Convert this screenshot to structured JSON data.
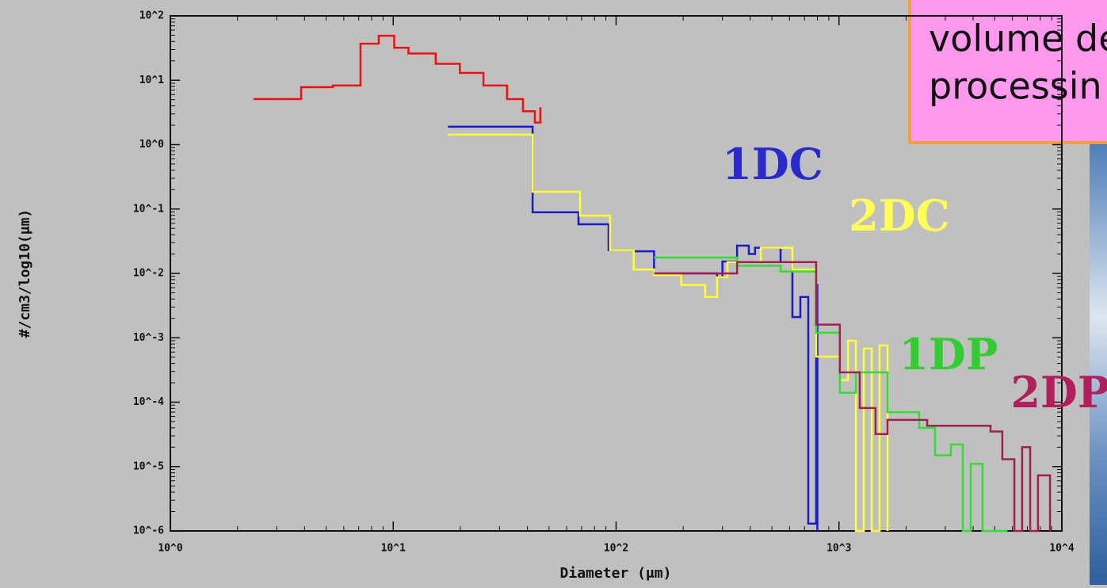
{
  "chart_data": {
    "type": "step",
    "x_label": "Diameter (μm)",
    "y_label": "#/cm3/log10(μm)",
    "log_x": true,
    "log_y": true,
    "xlim": [
      1,
      10000
    ],
    "ylim": [
      1e-06,
      100
    ],
    "xticks": [
      {
        "value": 1,
        "label": "10^0"
      },
      {
        "value": 10,
        "label": "10^1"
      },
      {
        "value": 100,
        "label": "10^2"
      },
      {
        "value": 1000,
        "label": "10^3"
      },
      {
        "value": 10000,
        "label": "10^4"
      }
    ],
    "yticks": [
      {
        "value": 1e-06,
        "label": "10^-6"
      },
      {
        "value": 1e-05,
        "label": "10^-5"
      },
      {
        "value": 0.0001,
        "label": "10^-4"
      },
      {
        "value": 0.001,
        "label": "10^-3"
      },
      {
        "value": 0.01,
        "label": "10^-2"
      },
      {
        "value": 0.1,
        "label": "10^-1"
      },
      {
        "value": 1,
        "label": "10^0"
      },
      {
        "value": 10,
        "label": "10^1"
      },
      {
        "value": 100,
        "label": "10^2"
      }
    ],
    "series": [
      {
        "color": "#ee1111",
        "x": [
          2.36,
          3.86,
          5.35,
          7.13,
          8.61,
          10.1,
          11.7,
          15.5,
          19.9,
          25.4,
          32.4,
          38.2,
          43.2,
          45.7
        ],
        "values": [
          5.1,
          7.8,
          8.3,
          37,
          49,
          32,
          26,
          18,
          13,
          8.3,
          5.1,
          3.3,
          2.2,
          3.8
        ]
      },
      {
        "color": "#1a1acc",
        "x": [
          17.6,
          42.2,
          67.8,
          92.5,
          120,
          148,
          284,
          300,
          349,
          394,
          420,
          547,
          618,
          671,
          728,
          790,
          800
        ],
        "values": [
          1.9,
          0.089,
          0.058,
          0.023,
          0.022,
          0.01,
          0.0087,
          0.0153,
          0.027,
          0.02,
          0.025,
          0.015,
          0.0021,
          0.0043,
          1.3e-06,
          0.0066,
          1e-06
        ]
      },
      {
        "color": "#ffff33",
        "x": [
          17.6,
          42.2,
          68.9,
          94,
          120,
          148,
          196,
          251,
          284,
          316,
          446,
          618,
          790,
          1009,
          1097,
          1191,
          1292,
          1403,
          1521,
          1651
        ],
        "values": [
          1.43,
          0.185,
          0.079,
          0.023,
          0.0115,
          0.0094,
          0.0066,
          0.0043,
          0.0087,
          0.015,
          0.025,
          0.0115,
          0.00051,
          0.00022,
          0.0009,
          1e-06,
          0.00068,
          1e-06,
          0.00076,
          1e-06
        ]
      },
      {
        "color": "#33dd33",
        "x": [
          148,
          349,
          547,
          790,
          1009,
          1191,
          1651,
          2291,
          2698,
          3178,
          3594,
          3900,
          4406,
          5700
        ],
        "values": [
          0.0176,
          0.0132,
          0.0107,
          0.0012,
          0.00014,
          0.00029,
          7e-05,
          4e-05,
          1.5e-05,
          2.2e-05,
          1e-06,
          1.1e-05,
          1e-06,
          1e-06
        ]
      },
      {
        "color": "#a02050",
        "x": [
          148,
          349,
          790,
          1009,
          1239,
          1459,
          1651,
          2489,
          4786,
          5408,
          6124,
          6637,
          7211,
          7816,
          8492,
          8850
        ],
        "values": [
          0.01,
          0.015,
          0.0016,
          0.00029,
          8.1e-05,
          3.2e-05,
          5.3e-05,
          4.3e-05,
          3.5e-05,
          1.3e-05,
          1e-06,
          2e-05,
          1e-06,
          7.3e-06,
          7.3e-06,
          1e-06
        ]
      }
    ],
    "annotations": [
      {
        "text": "1DC",
        "color": "#2a2acc"
      },
      {
        "text": "2DC",
        "color": "#ffff55"
      },
      {
        "text": "1DP",
        "color": "#33cc33"
      },
      {
        "text": "2DP",
        "color": "#b0205a"
      }
    ],
    "note_lines": [
      "volume de",
      "processin"
    ]
  }
}
